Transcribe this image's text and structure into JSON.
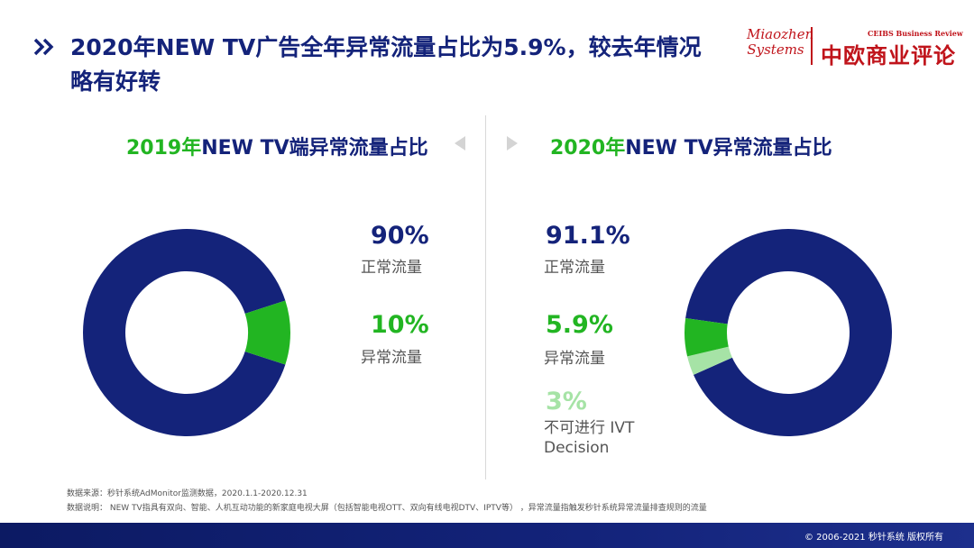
{
  "header": {
    "title": "2020年NEW TV广告全年异常流量占比为5.9%，较去年情况略有好转",
    "logo_miaozhen_line1": "Miaozhen",
    "logo_miaozhen_line2": "Systems",
    "logo_ceibs_en": "CEIBS Business Review",
    "logo_ceibs_cn": "中欧商业评论"
  },
  "colors": {
    "navy": "#14237a",
    "green": "#22b522",
    "light_green": "#a6e3a6",
    "brand_red": "#c0141b"
  },
  "icons": {
    "title_marker": "double-chevron-right-icon",
    "nav_prev": "triangle-left-icon",
    "nav_next": "triangle-right-icon"
  },
  "chart_data": [
    {
      "type": "pie",
      "donut": true,
      "title_year": "2019年",
      "title_rest": "NEW TV端异常流量占比",
      "slices": [
        {
          "label": "正常流量",
          "value": 90,
          "display": "90%",
          "color": "#14237a"
        },
        {
          "label": "异常流量",
          "value": 10,
          "display": "10%",
          "color": "#22b522"
        }
      ]
    },
    {
      "type": "pie",
      "donut": true,
      "title_year": "2020年",
      "title_rest": "NEW TV异常流量占比",
      "slices": [
        {
          "label": "正常流量",
          "value": 91.1,
          "display": "91.1%",
          "color": "#14237a"
        },
        {
          "label": "异常流量",
          "value": 5.9,
          "display": "5.9%",
          "color": "#22b522"
        },
        {
          "label": "不可进行 IVT Decision",
          "value": 3,
          "display": "3%",
          "color": "#a6e3a6"
        }
      ]
    }
  ],
  "notes": {
    "source": "数据来源：秒针系统AdMonitor监测数据，2020.1.1-2020.12.31",
    "explanation": "数据说明： NEW TV指具有双向、智能、人机互动功能的新家庭电视大屏（包括智能电视OTT、双向有线电视DTV、IPTV等） ，异常流量指触发秒针系统异常流量排查规则的流量"
  },
  "footer": {
    "copyright": "© 2006-2021 秒针系统 版权所有"
  }
}
